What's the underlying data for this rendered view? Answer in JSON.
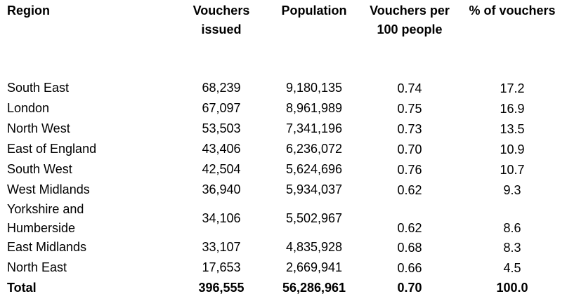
{
  "headers": {
    "region": "Region",
    "vouchers_issued": "Vouchers issued",
    "population": "Population",
    "per_100": "Vouchers per 100 people",
    "pct": "% of vouchers"
  },
  "rows": [
    {
      "region": "South East",
      "vouchers": "68,239",
      "population": "9,180,135",
      "per100": "0.74",
      "pct": "17.2"
    },
    {
      "region": "London",
      "vouchers": "67,097",
      "population": "8,961,989",
      "per100": "0.75",
      "pct": "16.9"
    },
    {
      "region": "North West",
      "vouchers": "53,503",
      "population": "7,341,196",
      "per100": "0.73",
      "pct": "13.5"
    },
    {
      "region": "East of England",
      "vouchers": "43,406",
      "population": "6,236,072",
      "per100": "0.70",
      "pct": "10.9"
    },
    {
      "region": "South West",
      "vouchers": "42,504",
      "population": "5,624,696",
      "per100": "0.76",
      "pct": "10.7"
    },
    {
      "region": "West Midlands",
      "vouchers": "36,940",
      "population": "5,934,037",
      "per100": "0.62",
      "pct": "9.3"
    },
    {
      "region_line1": "Yorkshire and",
      "region_line2": "Humberside",
      "vouchers": "34,106",
      "population": "5,502,967",
      "per100": "0.62",
      "pct": "8.6"
    },
    {
      "region": "East Midlands",
      "vouchers": "33,107",
      "population": "4,835,928",
      "per100": "0.68",
      "pct": "8.3"
    },
    {
      "region": "North East",
      "vouchers": "17,653",
      "population": "2,669,941",
      "per100": "0.66",
      "pct": "4.5"
    }
  ],
  "total": {
    "region": "Total",
    "vouchers": "396,555",
    "population": "56,286,961",
    "per100": "0.70",
    "pct": "100.0"
  }
}
